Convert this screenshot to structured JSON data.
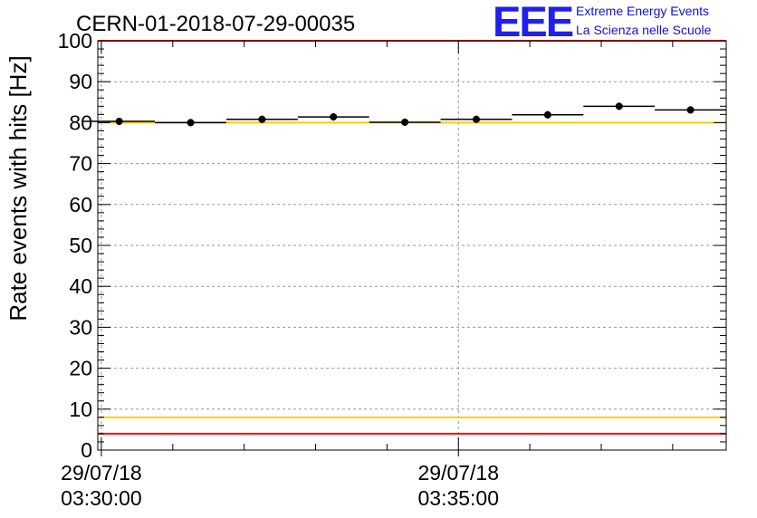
{
  "logo": {
    "mark": "EEE",
    "line1": "Extreme Energy Events",
    "line2": "La Scienza nelle Scuole"
  },
  "chart_data": {
    "type": "scatter",
    "title": "CERN-01-2018-07-29-00035",
    "xlabel": "",
    "ylabel": "Rate events with hits [Hz]",
    "xlim": [
      -0.05,
      8.75
    ],
    "ylim": [
      0,
      100
    ],
    "grid": true,
    "x_unit": "minutes after 29/07/18 03:30:00",
    "y_ticks": [
      0,
      10,
      20,
      30,
      40,
      50,
      60,
      70,
      80,
      90,
      100
    ],
    "x_tick_labels": [
      {
        "x": 0,
        "date": "29/07/18",
        "time": "03:30:00"
      },
      {
        "x": 5,
        "date": "29/07/18",
        "time": "03:35:00"
      }
    ],
    "series": [
      {
        "name": "rate",
        "x": [
          0.25,
          1.25,
          2.25,
          3.25,
          4.25,
          5.25,
          6.25,
          7.25,
          8.25
        ],
        "x_halfwidth": 0.5,
        "values": [
          80.3,
          80.0,
          80.8,
          81.4,
          80.1,
          80.8,
          81.9,
          84.0,
          83.1
        ],
        "errors": [
          0.9,
          0.9,
          0.9,
          0.9,
          0.9,
          0.9,
          0.9,
          0.9,
          0.9
        ]
      }
    ],
    "reference_lines": [
      {
        "name": "red-upper",
        "y": 100,
        "color": "#ff0000"
      },
      {
        "name": "yellow-upper",
        "y": 80,
        "color": "#ffcc00"
      },
      {
        "name": "yellow-lower",
        "y": 8,
        "color": "#ffcc00"
      },
      {
        "name": "red-lower",
        "y": 4,
        "color": "#ff0000"
      }
    ]
  }
}
